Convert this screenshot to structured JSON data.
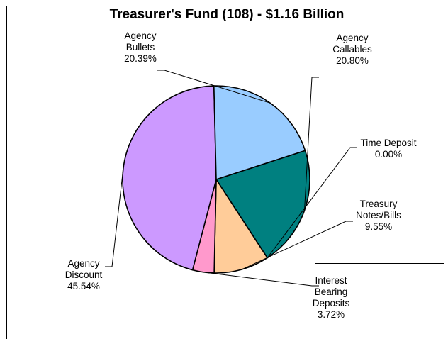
{
  "chart_data": {
    "type": "pie",
    "title": "Treasurer's Fund (108) - $1.16 Billion",
    "slices": [
      {
        "lines": [
          "Agency",
          "Callables",
          "20.80%"
        ],
        "value": 20.8,
        "color": "#008080"
      },
      {
        "lines": [
          "Time Deposit",
          "0.00%"
        ],
        "value": 0.0,
        "color": "#FF99CC"
      },
      {
        "lines": [
          "Treasury",
          "Notes/Bills",
          "9.55%"
        ],
        "value": 9.55,
        "color": "#FFCC99"
      },
      {
        "lines": [
          "Interest",
          "Bearing",
          "Deposits",
          "3.72%"
        ],
        "value": 3.72,
        "color": "#FF99CC"
      },
      {
        "lines": [
          "Agency",
          "Discount",
          "45.54%"
        ],
        "value": 45.54,
        "color": "#CC99FF"
      },
      {
        "lines": [
          "Agency",
          "Bullets",
          "20.39%"
        ],
        "value": 20.39,
        "color": "#99CCFF"
      }
    ]
  }
}
